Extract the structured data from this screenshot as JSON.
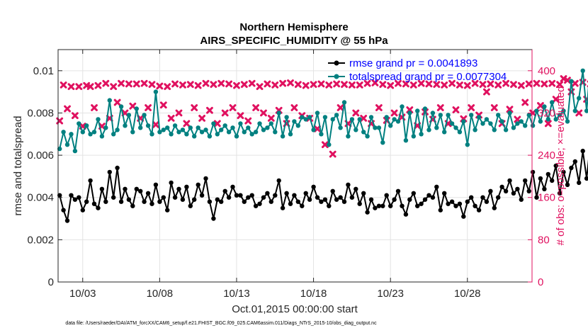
{
  "chart_data": {
    "type": "line",
    "title": "Northern Hemisphere",
    "subtitle": "AIRS_SPECIFIC_HUMIDITY @ 55 hPa",
    "xlabel": "Oct.01,2015 00:00:00 start",
    "ylabel": "rmse and totalspread",
    "y2label": "# of obs: o=possible; ×=evaluated",
    "footer": "data file: /Users/raeder/DAI/ATM_forcXX/CAM6_setup/f.e21.FHIST_BGC.f09_025.CAM6assim.011/Diags_NTrS_2015-10/obs_diag_output.nc",
    "xlim": [
      1.4,
      32.2
    ],
    "ylim": [
      0,
      0.011
    ],
    "y2lim": [
      0,
      440
    ],
    "x_ticks": [
      3,
      8,
      13,
      18,
      23,
      28
    ],
    "x_tick_labels": [
      "10/03",
      "10/08",
      "10/13",
      "10/18",
      "10/23",
      "10/28"
    ],
    "y_ticks": [
      0,
      0.002,
      0.004,
      0.006,
      0.008,
      0.01
    ],
    "y_tick_labels": [
      "0",
      "0.002",
      "0.004",
      "0.006",
      "0.008",
      "0.01"
    ],
    "y2_ticks": [
      0,
      80,
      160,
      240,
      320,
      400
    ],
    "y2_tick_labels": [
      "0",
      "80",
      "160",
      "240",
      "320",
      "400"
    ],
    "grid": true,
    "legend_position": "top-right",
    "x_start": 1.5,
    "x_step": 0.25,
    "series": [
      {
        "name": "rmse grand pr = 0.0041893",
        "color": "#000000",
        "axis": "left",
        "values": [
          0.0041,
          0.0034,
          0.0029,
          0.0041,
          0.0039,
          0.004,
          0.0034,
          0.0038,
          0.0048,
          0.0037,
          0.0035,
          0.0044,
          0.0038,
          0.0052,
          0.004,
          0.0054,
          0.0038,
          0.0044,
          0.0039,
          0.0036,
          0.0044,
          0.0043,
          0.0038,
          0.0042,
          0.0037,
          0.0046,
          0.0038,
          0.004,
          0.0034,
          0.0047,
          0.004,
          0.0044,
          0.0039,
          0.0045,
          0.0036,
          0.0039,
          0.0046,
          0.0041,
          0.0049,
          0.0038,
          0.003,
          0.0039,
          0.0038,
          0.0043,
          0.004,
          0.0045,
          0.0041,
          0.0041,
          0.0038,
          0.004,
          0.0041,
          0.0036,
          0.0037,
          0.004,
          0.0042,
          0.0038,
          0.0041,
          0.0048,
          0.0035,
          0.0042,
          0.0037,
          0.0041,
          0.0038,
          0.0036,
          0.0042,
          0.0039,
          0.0045,
          0.004,
          0.0038,
          0.0039,
          0.0036,
          0.0043,
          0.0039,
          0.004,
          0.0038,
          0.0046,
          0.004,
          0.0044,
          0.0037,
          0.0042,
          0.0033,
          0.0039,
          0.0035,
          0.0036,
          0.0036,
          0.0041,
          0.0036,
          0.0039,
          0.0043,
          0.0036,
          0.0032,
          0.0039,
          0.0042,
          0.0036,
          0.0037,
          0.0039,
          0.0041,
          0.004,
          0.0045,
          0.0034,
          0.0042,
          0.0037,
          0.0038,
          0.0036,
          0.0037,
          0.0031,
          0.0038,
          0.004,
          0.0036,
          0.0034,
          0.004,
          0.0038,
          0.0043,
          0.0035,
          0.004,
          0.0045,
          0.0043,
          0.0048,
          0.0042,
          0.0044,
          0.0039,
          0.0048,
          0.0043,
          0.0052,
          0.004,
          0.0049,
          0.0044,
          0.0051,
          0.0048,
          0.0055,
          0.0042,
          0.0052,
          0.0046,
          0.0054,
          0.0057,
          0.0047,
          0.0062,
          0.0049,
          0.0066,
          0.0053,
          0.0063,
          0.0047,
          0.0058
        ]
      },
      {
        "name": "totalspread grand pr = 0.0077304",
        "color": "#008080",
        "axis": "left",
        "values": [
          0.0063,
          0.0071,
          0.0065,
          0.007,
          0.0062,
          0.0075,
          0.0071,
          0.0074,
          0.007,
          0.0071,
          0.0077,
          0.0069,
          0.0073,
          0.0086,
          0.007,
          0.0072,
          0.0083,
          0.0074,
          0.0079,
          0.0071,
          0.0082,
          0.0073,
          0.0079,
          0.0074,
          0.007,
          0.009,
          0.0071,
          0.0072,
          0.0073,
          0.007,
          0.0074,
          0.0071,
          0.0072,
          0.007,
          0.0073,
          0.0069,
          0.0073,
          0.0071,
          0.0072,
          0.0069,
          0.0075,
          0.007,
          0.0072,
          0.0074,
          0.0071,
          0.0073,
          0.0069,
          0.0075,
          0.0071,
          0.0073,
          0.007,
          0.0071,
          0.0075,
          0.0072,
          0.0073,
          0.0075,
          0.0071,
          0.008,
          0.0069,
          0.0078,
          0.007,
          0.0076,
          0.0074,
          0.0078,
          0.0077,
          0.0078,
          0.0072,
          0.008,
          0.007,
          0.0078,
          0.0065,
          0.0077,
          0.0079,
          0.0073,
          0.0085,
          0.0069,
          0.0077,
          0.0072,
          0.0077,
          0.0071,
          0.0069,
          0.0078,
          0.0073,
          0.0073,
          0.0066,
          0.0078,
          0.0074,
          0.0077,
          0.0076,
          0.0083,
          0.0067,
          0.008,
          0.0069,
          0.0081,
          0.007,
          0.0082,
          0.0072,
          0.008,
          0.0073,
          0.0079,
          0.0071,
          0.0079,
          0.0075,
          0.0073,
          0.0071,
          0.0076,
          0.0065,
          0.0079,
          0.0072,
          0.0078,
          0.0075,
          0.0077,
          0.0075,
          0.0072,
          0.0079,
          0.0076,
          0.0072,
          0.008,
          0.0073,
          0.0075,
          0.0076,
          0.0074,
          0.0079,
          0.0074,
          0.0081,
          0.0076,
          0.0083,
          0.0077,
          0.0085,
          0.0077,
          0.0079,
          0.0081,
          0.0076,
          0.0095,
          0.0081,
          0.0087,
          0.01,
          0.0081,
          0.0103,
          0.0084,
          0.01,
          0.0094,
          0.0103,
          0.0079,
          0.0101
        ]
      }
    ],
    "obs_possible": {
      "name": "# of obs possible",
      "marker": "o",
      "axis": "right",
      "values": []
    },
    "obs_evaluated": {
      "name": "# of obs evaluated",
      "marker": "x",
      "color": "#e0115f",
      "axis": "right",
      "values": [
        305,
        373,
        328,
        370,
        315,
        370,
        295,
        372,
        370,
        330,
        372,
        295,
        376,
        310,
        370,
        340,
        376,
        320,
        375,
        333,
        375,
        310,
        376,
        330,
        374,
        298,
        371,
        335,
        370,
        310,
        375,
        320,
        373,
        300,
        374,
        330,
        372,
        310,
        376,
        325,
        374,
        300,
        376,
        320,
        375,
        330,
        372,
        315,
        374,
        305,
        376,
        330,
        370,
        320,
        375,
        310,
        373,
        325,
        376,
        300,
        377,
        330,
        374,
        315,
        372,
        310,
        374,
        290,
        375,
        260,
        373,
        242,
        375,
        330,
        374,
        300,
        373,
        320,
        373,
        310,
        376,
        300,
        377,
        330,
        374,
        306,
        372,
        320,
        376,
        312,
        375,
        326,
        373,
        296,
        376,
        322,
        375,
        308,
        374,
        330,
        373,
        300,
        376,
        326,
        373,
        309,
        372,
        330,
        376,
        316,
        374,
        360,
        375,
        330,
        373,
        300,
        376,
        327,
        374,
        308,
        372,
        340,
        375,
        320,
        376,
        334,
        375,
        300,
        376,
        346,
        374,
        385,
        382,
        360,
        376,
        320,
        378,
        346,
        375,
        330,
        377,
        310,
        345
      ]
    }
  }
}
